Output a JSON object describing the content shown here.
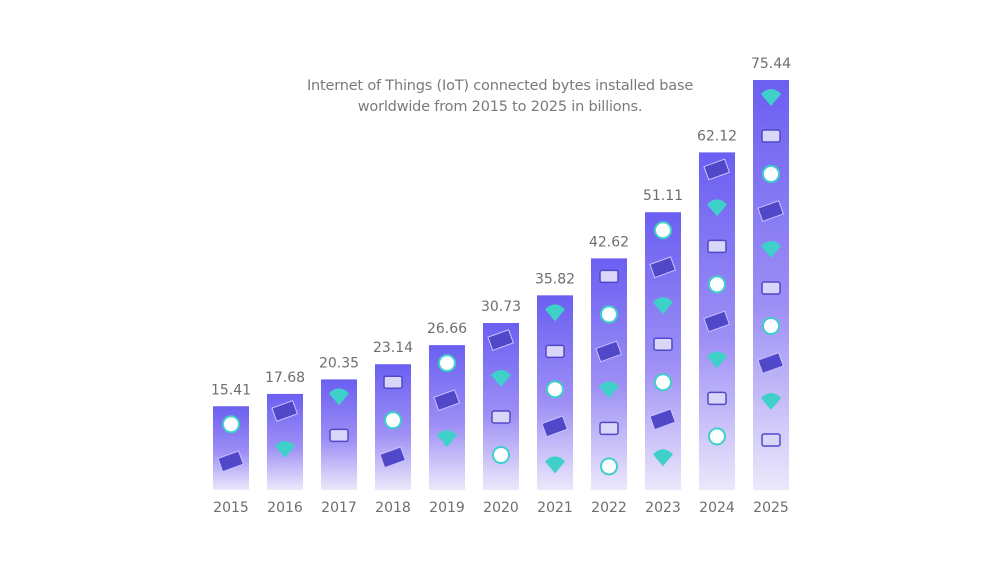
{
  "chart_data": {
    "type": "bar",
    "title_line1": "Internet of Things (IoT) connected bytes installed base",
    "title_line2": "worldwide from 2015 to 2025 in billions.",
    "xlabel": "",
    "ylabel": "",
    "categories": [
      "2015",
      "2016",
      "2017",
      "2018",
      "2019",
      "2020",
      "2021",
      "2022",
      "2023",
      "2024",
      "2025"
    ],
    "values": [
      15.41,
      17.68,
      20.35,
      23.14,
      26.66,
      30.73,
      35.82,
      42.62,
      51.11,
      62.12,
      75.44
    ],
    "value_labels": [
      "15.41",
      "17.68",
      "20.35",
      "23.14",
      "26.66",
      "30.73",
      "35.82",
      "42.62",
      "51.11",
      "62.12",
      "75.44"
    ],
    "grid": false,
    "legend": "none",
    "colors": {
      "bar_top": "#6a5cf0",
      "bar_bottom": "#efeafc",
      "accent": "#3fd0c9",
      "text": "#6e6e6e"
    }
  }
}
